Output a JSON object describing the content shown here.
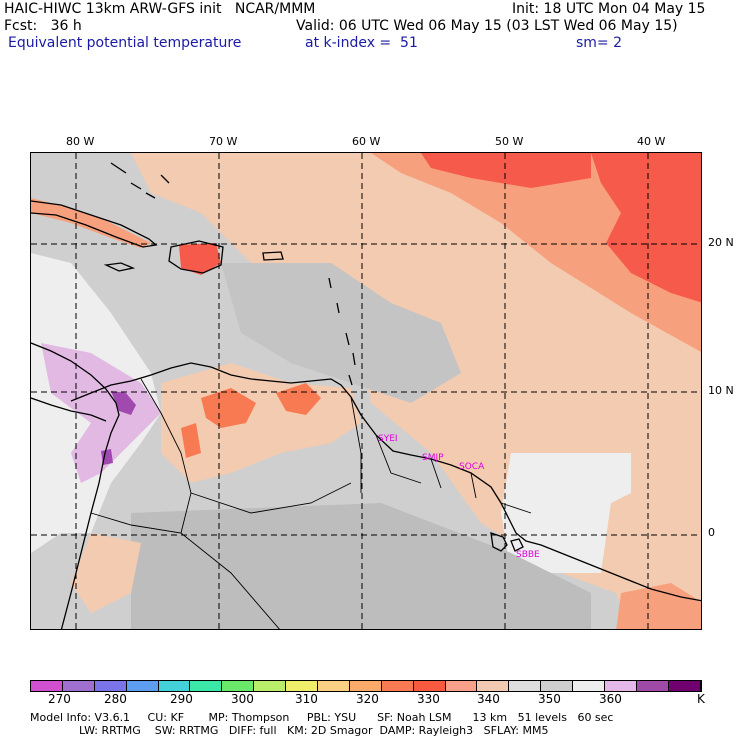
{
  "header": {
    "line1_left": "HAIC-HIWC 13km ARW-GFS init   NCAR/MMM",
    "line1_right": "Init: 18 UTC Mon 04 May 15",
    "fcst": "Fcst:   36 h",
    "valid": "Valid: 06 UTC Wed 06 May 15 (03 LST Wed 06 May 15)",
    "field_name": "Equivalent potential temperature",
    "level": "at k-index =  51",
    "smoothing": "sm= 2"
  },
  "map": {
    "lon_labels": [
      "80 W",
      "70 W",
      "60 W",
      "50 W",
      "40 W"
    ],
    "lat_labels": [
      "20 N",
      "10 N",
      "0"
    ],
    "stations": [
      "SYEI",
      "SMJP",
      "SOCA",
      "SBBE"
    ],
    "colors": {
      "background": "#cfcfcf",
      "warm_light": "#f3cbb0",
      "warm_mid": "#f6a07e",
      "warm_hot": "#f55a4a",
      "pale": "#eeeeee",
      "lilac": "#e1b9e3",
      "violet": "#a04ab0",
      "light_gray": "#bdbdbd"
    }
  },
  "colorbar": {
    "unit": "K",
    "tick_labels": [
      "270",
      "280",
      "290",
      "300",
      "310",
      "320",
      "330",
      "340",
      "350",
      "360"
    ],
    "colors": [
      "#d050d0",
      "#a070d0",
      "#7a74e8",
      "#5e9ef0",
      "#44d0d8",
      "#3ce8a8",
      "#6ae86a",
      "#b8ee6a",
      "#eeee6a",
      "#fcd084",
      "#fcaa6a",
      "#f87a52",
      "#f85a40",
      "#f8a08a",
      "#f2cab2",
      "#dedede",
      "#cecece",
      "#eeeeee",
      "#e6b8ea",
      "#a04aa8",
      "#700070"
    ]
  },
  "model_info": {
    "line1": "Model Info: V3.6.1     CU: KF       MP: Thompson     PBL: YSU      SF: Noah LSM      13 km   51 levels   60 sec",
    "line2": "              LW: RRTMG    SW: RRTMG   DIFF: full   KM: 2D Smagor  DAMP: Rayleigh3   SFLAY: MM5"
  }
}
